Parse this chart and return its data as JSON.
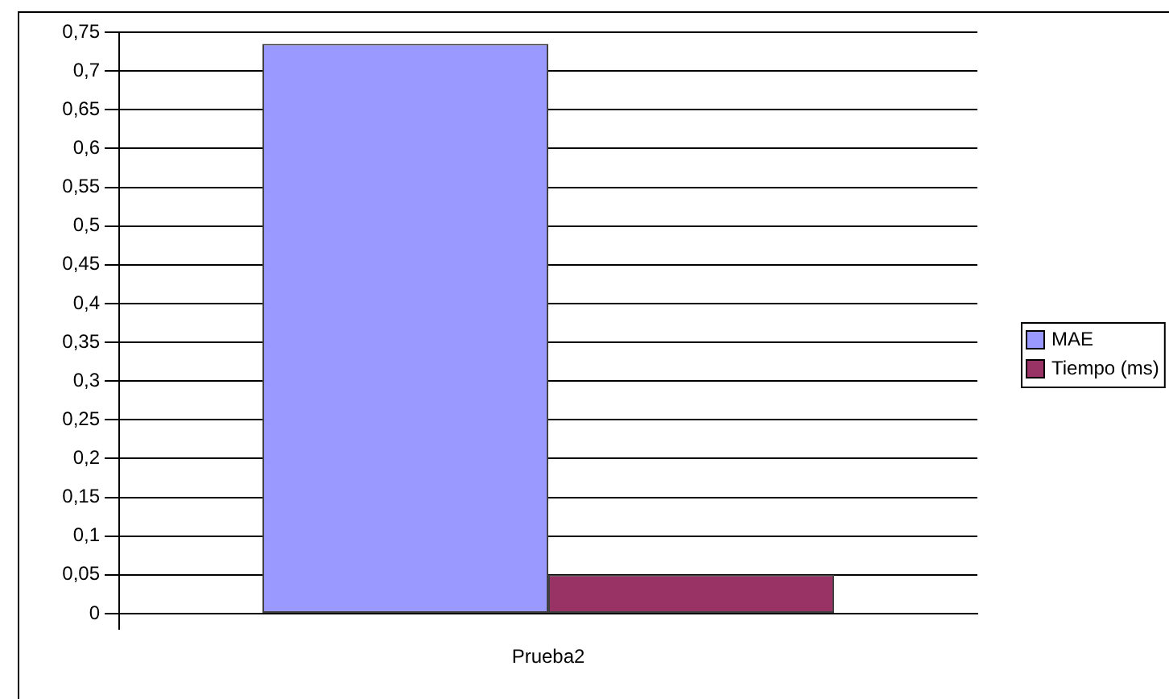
{
  "chart_data": {
    "type": "bar",
    "categories": [
      "Prueba2"
    ],
    "series": [
      {
        "name": "MAE",
        "color": "#9999ff",
        "values": [
          0.735
        ]
      },
      {
        "name": "Tiempo (ms)",
        "color": "#993366",
        "values": [
          0.05
        ]
      }
    ],
    "ylim": [
      0,
      0.75
    ],
    "yticks": [
      0,
      {
        "value": 0.05,
        "label": "0,05"
      },
      {
        "value": 0.1,
        "label": "0,1"
      },
      {
        "value": 0.15,
        "label": "0,15"
      },
      {
        "value": 0.2,
        "label": "0,2"
      },
      {
        "value": 0.25,
        "label": "0,25"
      },
      {
        "value": 0.3,
        "label": "0,3"
      },
      {
        "value": 0.35,
        "label": "0,35"
      },
      {
        "value": 0.4,
        "label": "0,4"
      },
      {
        "value": 0.45,
        "label": "0,45"
      },
      {
        "value": 0.5,
        "label": "0,5"
      },
      {
        "value": 0.55,
        "label": "0,55"
      },
      {
        "value": 0.6,
        "label": "0,6"
      },
      {
        "value": 0.65,
        "label": "0,65"
      },
      {
        "value": 0.7,
        "label": "0,7"
      },
      {
        "value": 0.75,
        "label": "0,75"
      }
    ],
    "grid": "y",
    "legend": "right"
  }
}
